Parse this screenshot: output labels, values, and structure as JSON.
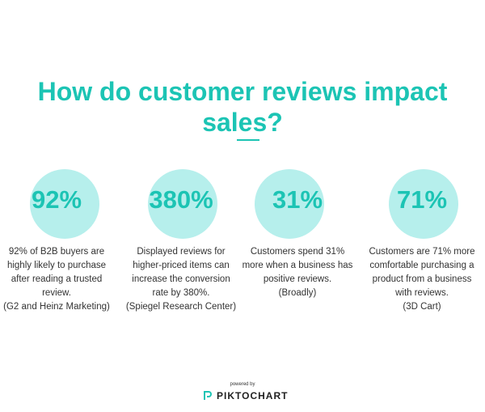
{
  "header": {
    "title": "How do customer reviews impact sales?"
  },
  "stats": [
    {
      "figure": "92%",
      "text": "92% of B2B buyers are highly likely to purchase after reading a trusted review.",
      "source": "(G2 and Heinz Marketing)"
    },
    {
      "figure": "380%",
      "text": "Displayed reviews for higher-priced items can increase the conversion rate by 380%.",
      "source": "(Spiegel Research Center)"
    },
    {
      "figure": "31%",
      "text": "Customers spend 31% more when a business has positive reviews.",
      "source": "(Broadly)"
    },
    {
      "figure": "71%",
      "text": "Customers are 71% more comfortable purchasing a product from a business with reviews.",
      "source": "(3D Cart)"
    }
  ],
  "footer": {
    "powered": "powered by",
    "brand": "PIKTOCHART"
  }
}
